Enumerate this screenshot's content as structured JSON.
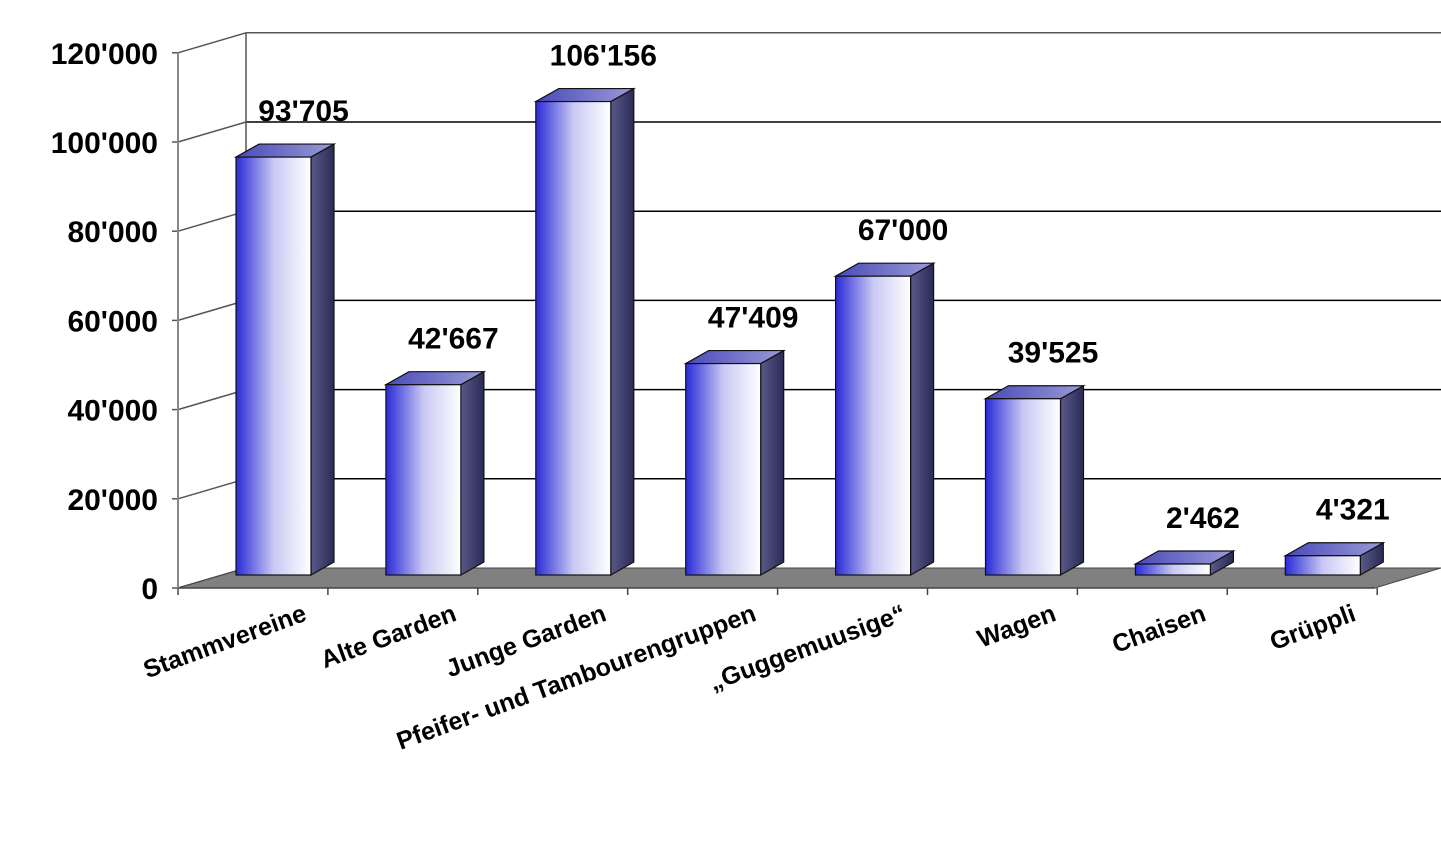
{
  "chart_data": {
    "type": "bar",
    "style": "3d-column",
    "categories": [
      "Stammvereine",
      "Alte Garden",
      "Junge Garden",
      "Pfeifer- und Tambourengruppen",
      "„Guggemuusige“",
      "Wagen",
      "Chaisen",
      "Grüppli"
    ],
    "values": [
      93705,
      42667,
      106156,
      47409,
      67000,
      39525,
      2462,
      4321
    ],
    "value_labels": [
      "93'705",
      "42'667",
      "106'156",
      "47'409",
      "67'000",
      "39'525",
      "2'462",
      "4'321"
    ],
    "yticks": [
      0,
      20000,
      40000,
      60000,
      80000,
      100000,
      120000
    ],
    "ytick_labels": [
      "0",
      "20'000",
      "40'000",
      "60'000",
      "80'000",
      "100'000",
      "120'000"
    ],
    "ylim": [
      0,
      120000
    ],
    "grid": true,
    "legend": "none",
    "colors": {
      "bar_light": "#ffffff",
      "bar_dark": "#2a2ad8",
      "bar_side": "#3a3a70",
      "bar_top": "#6e6ec8",
      "floor": "#808080",
      "grid": "#000000"
    }
  }
}
